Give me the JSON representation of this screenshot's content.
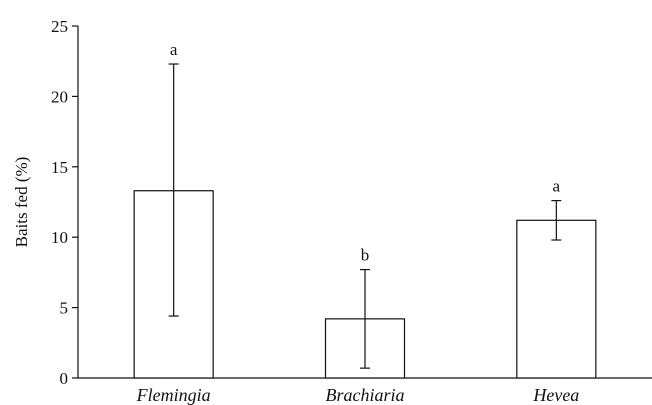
{
  "chart_data": {
    "type": "bar",
    "title": "",
    "xlabel": "",
    "ylabel": "Baits fed (%)",
    "ylim": [
      0,
      25
    ],
    "yticks": [
      0,
      5,
      10,
      15,
      20,
      25
    ],
    "grid": false,
    "categories": [
      "Flemingia",
      "Brachiaria",
      "Hevea"
    ],
    "values": [
      13.3,
      4.2,
      11.2
    ],
    "error_low": [
      4.4,
      0.7,
      9.8
    ],
    "error_high": [
      22.3,
      7.7,
      12.6
    ],
    "significance_labels": [
      "a",
      "b",
      "a"
    ],
    "colors": {
      "bar_fill": "#ffffff",
      "stroke": "#111111"
    }
  }
}
